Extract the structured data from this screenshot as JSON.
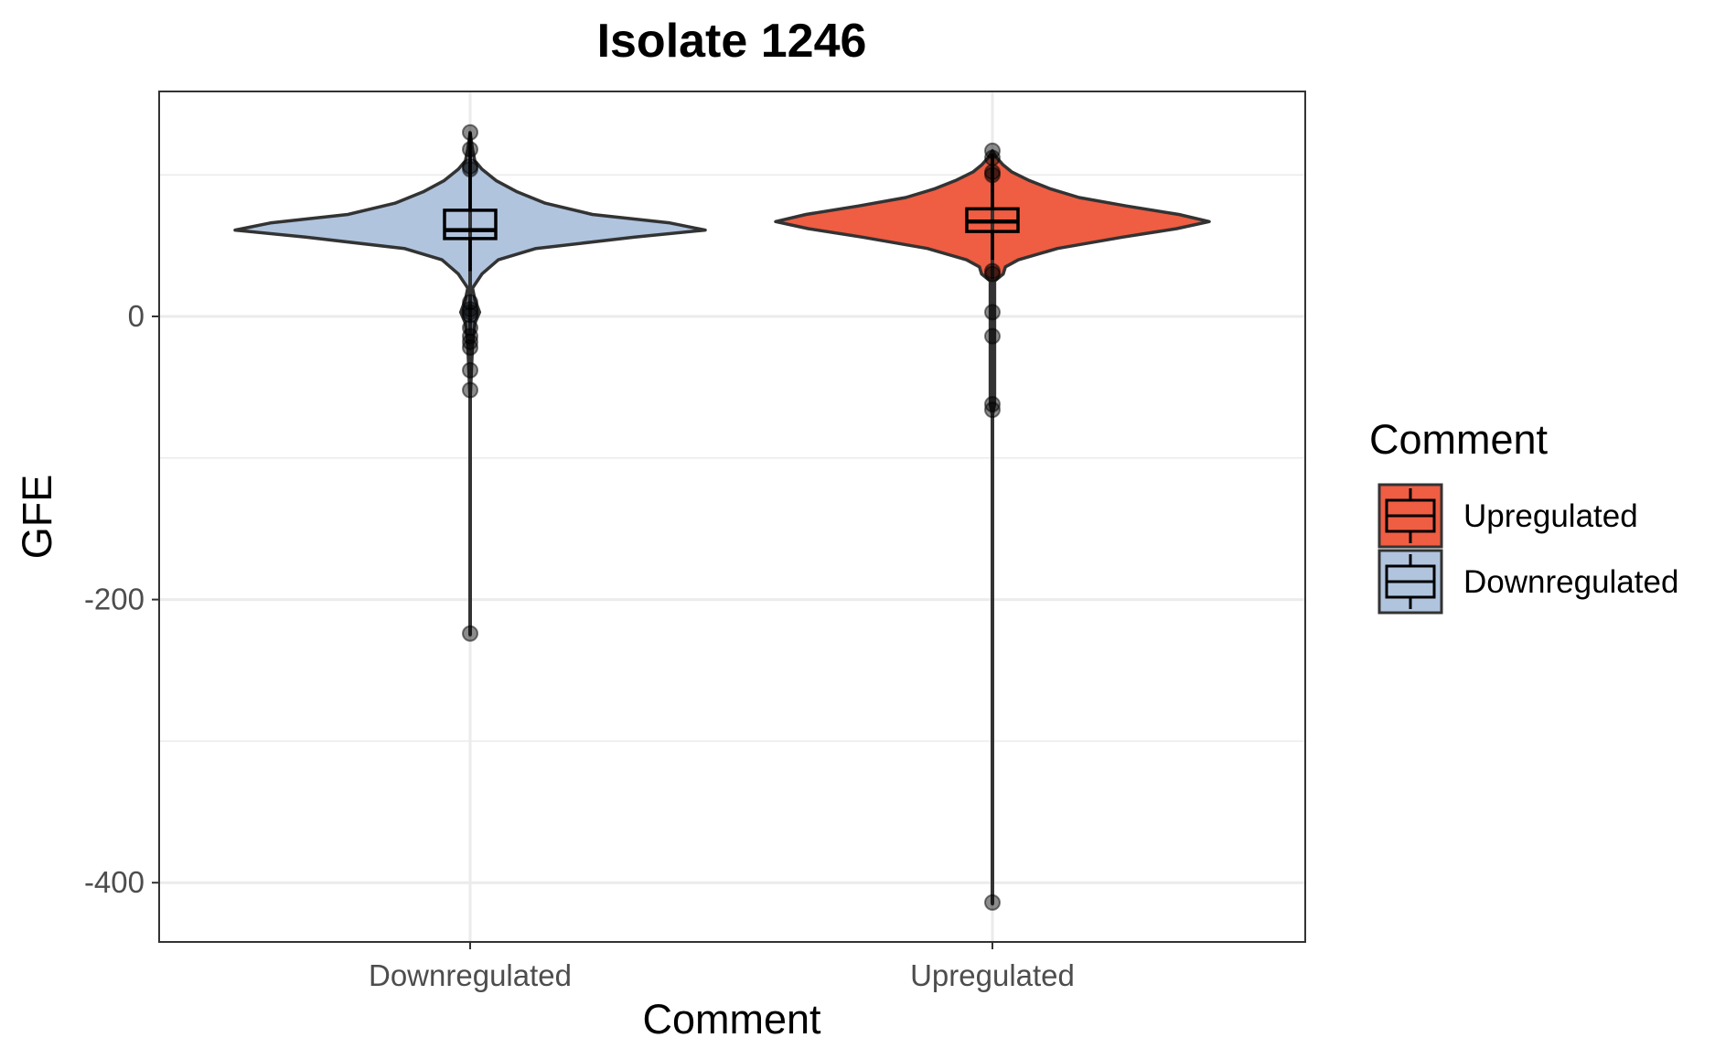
{
  "chart_data": {
    "type": "violin",
    "title": "Isolate 1246",
    "xlabel": "Comment",
    "ylabel": "GFE",
    "categories": [
      "Downregulated",
      "Upregulated"
    ],
    "yticks": [
      0,
      -200,
      -400
    ],
    "ylim": [
      -440,
      160
    ],
    "grid": true,
    "legend": {
      "title": "Comment",
      "position": "right",
      "entries": [
        {
          "label": "Upregulated",
          "color": "#ef5d43"
        },
        {
          "label": "Downregulated",
          "color": "#b0c4de"
        }
      ]
    },
    "series": [
      {
        "category": "Downregulated",
        "color": "#b0c4de",
        "box": {
          "lower_whisker": 32,
          "q1": 55,
          "median": 61,
          "q3": 75,
          "upper_whisker": 130
        },
        "violin_profile": [
          {
            "y": -225,
            "density": 0
          },
          {
            "y": -60,
            "density": 0
          },
          {
            "y": -20,
            "density": 0.01
          },
          {
            "y": -5,
            "density": 0.02
          },
          {
            "y": 3,
            "density": 0.04
          },
          {
            "y": 12,
            "density": 0.02
          },
          {
            "y": 20,
            "density": 0.01
          },
          {
            "y": 30,
            "density": 0.05
          },
          {
            "y": 40,
            "density": 0.12
          },
          {
            "y": 48,
            "density": 0.28
          },
          {
            "y": 56,
            "density": 0.7
          },
          {
            "y": 61,
            "density": 1.0
          },
          {
            "y": 66,
            "density": 0.85
          },
          {
            "y": 72,
            "density": 0.52
          },
          {
            "y": 80,
            "density": 0.32
          },
          {
            "y": 88,
            "density": 0.2
          },
          {
            "y": 96,
            "density": 0.11
          },
          {
            "y": 104,
            "density": 0.05
          },
          {
            "y": 110,
            "density": 0.02
          },
          {
            "y": 118,
            "density": 0.01
          },
          {
            "y": 130,
            "density": 0
          }
        ],
        "points": [
          130,
          118,
          106,
          104,
          10,
          5,
          3,
          1,
          -8,
          -14,
          -18,
          -22,
          -38,
          -52,
          -224
        ]
      },
      {
        "category": "Upregulated",
        "color": "#ef5d43",
        "box": {
          "lower_whisker": 40,
          "q1": 60,
          "median": 67,
          "q3": 76,
          "upper_whisker": 115
        },
        "violin_profile": [
          {
            "y": -415,
            "density": 0
          },
          {
            "y": -70,
            "density": 0
          },
          {
            "y": -62,
            "density": 0.01
          },
          {
            "y": 25,
            "density": 0.01
          },
          {
            "y": 30,
            "density": 0.05
          },
          {
            "y": 35,
            "density": 0.06
          },
          {
            "y": 40,
            "density": 0.12
          },
          {
            "y": 48,
            "density": 0.3
          },
          {
            "y": 56,
            "density": 0.6
          },
          {
            "y": 62,
            "density": 0.85
          },
          {
            "y": 67,
            "density": 1.0
          },
          {
            "y": 72,
            "density": 0.86
          },
          {
            "y": 78,
            "density": 0.62
          },
          {
            "y": 84,
            "density": 0.4
          },
          {
            "y": 90,
            "density": 0.27
          },
          {
            "y": 96,
            "density": 0.17
          },
          {
            "y": 102,
            "density": 0.09
          },
          {
            "y": 107,
            "density": 0.05
          },
          {
            "y": 112,
            "density": 0.02
          },
          {
            "y": 117,
            "density": 0
          }
        ],
        "points": [
          117,
          112,
          102,
          100,
          32,
          30,
          3,
          -14,
          -62,
          -66,
          -414
        ]
      }
    ]
  }
}
